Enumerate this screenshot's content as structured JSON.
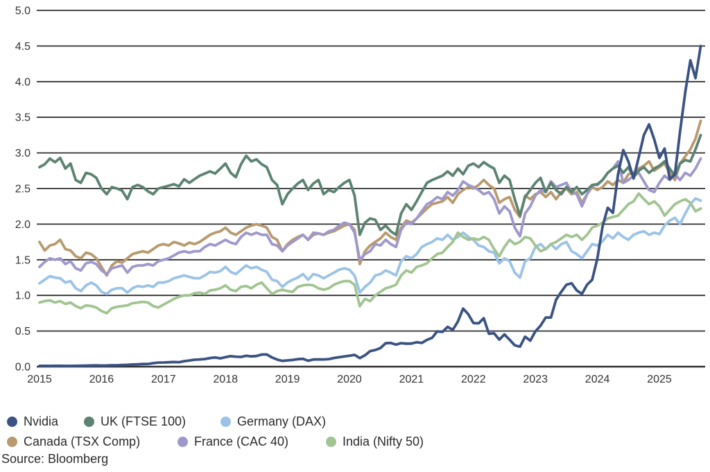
{
  "chart_data": {
    "type": "line",
    "title": "",
    "x_interval": "monthly",
    "x_range": [
      "2015-01",
      "2025-09"
    ],
    "x_tick_labels": [
      "2015",
      "2016",
      "2017",
      "2018",
      "2019",
      "2020",
      "2021",
      "2022",
      "2023",
      "2024",
      "2025"
    ],
    "ylim": [
      0.0,
      5.0
    ],
    "y_ticks": [
      0.0,
      0.5,
      1.0,
      1.5,
      2.0,
      2.5,
      3.0,
      3.5,
      4.0,
      4.5,
      5.0
    ],
    "grid": "horizontal-solid",
    "grid_color": "#2f2f2f",
    "axis_label_color": "#333333",
    "legend_position": "bottom-left-two-rows",
    "source": "Source: Bloomberg",
    "draw_order": [
      2,
      5,
      3,
      4,
      1,
      0
    ],
    "series": [
      {
        "name": "Nvidia",
        "color": "#3b5383",
        "values": [
          0.011,
          0.011,
          0.011,
          0.012,
          0.012,
          0.011,
          0.011,
          0.012,
          0.013,
          0.015,
          0.017,
          0.018,
          0.016,
          0.017,
          0.019,
          0.019,
          0.022,
          0.025,
          0.03,
          0.033,
          0.037,
          0.038,
          0.049,
          0.057,
          0.058,
          0.061,
          0.065,
          0.062,
          0.077,
          0.087,
          0.097,
          0.101,
          0.107,
          0.121,
          0.129,
          0.117,
          0.133,
          0.147,
          0.14,
          0.136,
          0.153,
          0.144,
          0.149,
          0.17,
          0.171,
          0.128,
          0.099,
          0.081,
          0.088,
          0.094,
          0.105,
          0.11,
          0.083,
          0.1,
          0.102,
          0.101,
          0.106,
          0.122,
          0.132,
          0.144,
          0.153,
          0.165,
          0.12,
          0.16,
          0.218,
          0.233,
          0.261,
          0.329,
          0.333,
          0.309,
          0.33,
          0.323,
          0.324,
          0.342,
          0.333,
          0.375,
          0.405,
          0.495,
          0.487,
          0.558,
          0.517,
          0.635,
          0.815,
          0.735,
          0.612,
          0.608,
          0.68,
          0.462,
          0.468,
          0.379,
          0.452,
          0.377,
          0.3,
          0.28,
          0.42,
          0.365,
          0.495,
          0.575,
          0.69,
          0.69,
          0.94,
          1.05,
          1.15,
          1.17,
          1.07,
          1.02,
          1.15,
          1.22,
          1.52,
          1.97,
          2.23,
          2.16,
          2.7,
          3.04,
          2.88,
          2.64,
          2.94,
          3.25,
          3.4,
          3.19,
          2.93,
          3.06,
          2.63,
          2.7,
          3.3,
          3.85,
          4.3,
          4.05,
          4.5
        ]
      },
      {
        "name": "UK (FTSE 100)",
        "color": "#5c8371",
        "values": [
          2.8,
          2.84,
          2.92,
          2.87,
          2.93,
          2.78,
          2.85,
          2.62,
          2.58,
          2.72,
          2.7,
          2.65,
          2.5,
          2.42,
          2.52,
          2.5,
          2.47,
          2.35,
          2.52,
          2.55,
          2.52,
          2.46,
          2.42,
          2.5,
          2.52,
          2.54,
          2.56,
          2.53,
          2.63,
          2.58,
          2.63,
          2.68,
          2.71,
          2.74,
          2.71,
          2.78,
          2.85,
          2.72,
          2.66,
          2.84,
          2.96,
          2.88,
          2.91,
          2.84,
          2.8,
          2.62,
          2.55,
          2.28,
          2.42,
          2.5,
          2.57,
          2.62,
          2.48,
          2.57,
          2.62,
          2.42,
          2.48,
          2.45,
          2.52,
          2.58,
          2.62,
          2.4,
          1.85,
          2.02,
          2.08,
          2.06,
          1.92,
          1.98,
          1.9,
          1.85,
          2.15,
          2.28,
          2.2,
          2.32,
          2.45,
          2.58,
          2.62,
          2.65,
          2.68,
          2.74,
          2.68,
          2.78,
          2.7,
          2.82,
          2.85,
          2.8,
          2.87,
          2.82,
          2.78,
          2.58,
          2.68,
          2.62,
          2.35,
          2.12,
          2.38,
          2.48,
          2.58,
          2.65,
          2.45,
          2.58,
          2.48,
          2.42,
          2.52,
          2.45,
          2.52,
          2.42,
          2.48,
          2.55,
          2.56,
          2.62,
          2.72,
          2.78,
          2.82,
          2.72,
          2.8,
          2.66,
          2.75,
          2.8,
          2.72,
          2.78,
          2.82,
          2.88,
          2.78,
          2.68,
          2.85,
          2.9,
          2.88,
          3.05,
          3.25
        ]
      },
      {
        "name": "Germany (DAX)",
        "color": "#9cc3e5",
        "values": [
          1.17,
          1.22,
          1.27,
          1.25,
          1.24,
          1.18,
          1.2,
          1.1,
          1.06,
          1.14,
          1.18,
          1.14,
          1.05,
          1.02,
          1.08,
          1.1,
          1.1,
          1.04,
          1.1,
          1.13,
          1.12,
          1.14,
          1.12,
          1.18,
          1.18,
          1.2,
          1.24,
          1.26,
          1.28,
          1.26,
          1.24,
          1.24,
          1.28,
          1.33,
          1.32,
          1.34,
          1.4,
          1.33,
          1.3,
          1.36,
          1.42,
          1.38,
          1.4,
          1.36,
          1.33,
          1.22,
          1.2,
          1.12,
          1.18,
          1.22,
          1.25,
          1.3,
          1.22,
          1.3,
          1.28,
          1.24,
          1.28,
          1.32,
          1.36,
          1.38,
          1.36,
          1.28,
          1.04,
          1.12,
          1.18,
          1.28,
          1.3,
          1.35,
          1.32,
          1.28,
          1.48,
          1.55,
          1.52,
          1.58,
          1.68,
          1.72,
          1.75,
          1.8,
          1.78,
          1.85,
          1.78,
          1.82,
          1.88,
          1.82,
          1.78,
          1.7,
          1.68,
          1.62,
          1.6,
          1.45,
          1.52,
          1.48,
          1.32,
          1.25,
          1.48,
          1.52,
          1.68,
          1.72,
          1.65,
          1.72,
          1.65,
          1.72,
          1.75,
          1.62,
          1.58,
          1.52,
          1.62,
          1.72,
          1.7,
          1.76,
          1.85,
          1.8,
          1.88,
          1.82,
          1.78,
          1.85,
          1.88,
          1.9,
          1.85,
          1.88,
          1.86,
          1.98,
          2.05,
          2.09,
          2.0,
          2.15,
          2.28,
          2.36,
          2.33
        ]
      },
      {
        "name": "Canada (TSX Comp)",
        "color": "#b89a6e",
        "values": [
          1.75,
          1.63,
          1.7,
          1.72,
          1.78,
          1.65,
          1.63,
          1.55,
          1.52,
          1.6,
          1.58,
          1.52,
          1.4,
          1.28,
          1.42,
          1.48,
          1.46,
          1.52,
          1.58,
          1.6,
          1.62,
          1.6,
          1.65,
          1.7,
          1.72,
          1.7,
          1.75,
          1.73,
          1.7,
          1.74,
          1.72,
          1.75,
          1.8,
          1.85,
          1.88,
          1.9,
          1.95,
          1.88,
          1.85,
          1.9,
          1.95,
          1.98,
          2.0,
          1.98,
          1.95,
          1.82,
          1.78,
          1.62,
          1.72,
          1.78,
          1.82,
          1.85,
          1.78,
          1.85,
          1.87,
          1.85,
          1.88,
          1.9,
          1.94,
          1.98,
          2.0,
          1.92,
          1.44,
          1.62,
          1.7,
          1.75,
          1.8,
          1.88,
          1.82,
          1.78,
          1.95,
          2.05,
          2.02,
          2.08,
          2.15,
          2.22,
          2.28,
          2.3,
          2.32,
          2.38,
          2.3,
          2.42,
          2.48,
          2.52,
          2.5,
          2.55,
          2.62,
          2.55,
          2.5,
          2.3,
          2.35,
          2.38,
          2.2,
          2.1,
          2.4,
          2.35,
          2.42,
          2.45,
          2.38,
          2.45,
          2.35,
          2.45,
          2.5,
          2.42,
          2.45,
          2.3,
          2.42,
          2.52,
          2.48,
          2.52,
          2.6,
          2.55,
          2.62,
          2.58,
          2.7,
          2.72,
          2.78,
          2.82,
          2.88,
          2.75,
          2.8,
          2.85,
          2.72,
          2.62,
          2.85,
          2.95,
          3.05,
          3.2,
          3.45
        ]
      },
      {
        "name": "France (CAC 40)",
        "color": "#9f98cd",
        "values": [
          1.4,
          1.47,
          1.52,
          1.5,
          1.52,
          1.44,
          1.48,
          1.38,
          1.35,
          1.45,
          1.47,
          1.44,
          1.35,
          1.3,
          1.38,
          1.4,
          1.42,
          1.32,
          1.4,
          1.42,
          1.42,
          1.44,
          1.42,
          1.48,
          1.5,
          1.52,
          1.56,
          1.6,
          1.62,
          1.6,
          1.62,
          1.62,
          1.68,
          1.72,
          1.7,
          1.74,
          1.78,
          1.74,
          1.72,
          1.82,
          1.88,
          1.85,
          1.88,
          1.85,
          1.85,
          1.72,
          1.7,
          1.62,
          1.7,
          1.75,
          1.8,
          1.85,
          1.78,
          1.88,
          1.87,
          1.85,
          1.9,
          1.92,
          1.98,
          2.02,
          2.0,
          1.88,
          1.5,
          1.58,
          1.62,
          1.72,
          1.7,
          1.78,
          1.72,
          1.68,
          1.92,
          2.02,
          2.0,
          2.08,
          2.18,
          2.28,
          2.32,
          2.38,
          2.35,
          2.45,
          2.4,
          2.48,
          2.6,
          2.55,
          2.52,
          2.48,
          2.42,
          2.45,
          2.35,
          2.15,
          2.25,
          2.18,
          1.95,
          1.83,
          2.15,
          2.25,
          2.4,
          2.48,
          2.45,
          2.6,
          2.52,
          2.55,
          2.58,
          2.45,
          2.42,
          2.25,
          2.42,
          2.55,
          2.55,
          2.62,
          2.72,
          2.78,
          2.88,
          2.58,
          2.62,
          2.68,
          2.72,
          2.6,
          2.48,
          2.45,
          2.58,
          2.68,
          2.62,
          2.7,
          2.62,
          2.72,
          2.68,
          2.78,
          2.92
        ]
      },
      {
        "name": "India (Nifty 50)",
        "color": "#a2c492",
        "values": [
          0.9,
          0.92,
          0.93,
          0.9,
          0.92,
          0.88,
          0.9,
          0.85,
          0.82,
          0.86,
          0.85,
          0.83,
          0.78,
          0.75,
          0.82,
          0.84,
          0.85,
          0.86,
          0.89,
          0.9,
          0.91,
          0.9,
          0.85,
          0.83,
          0.87,
          0.91,
          0.95,
          0.98,
          1.0,
          1.0,
          1.03,
          1.04,
          1.02,
          1.07,
          1.08,
          1.1,
          1.14,
          1.08,
          1.06,
          1.12,
          1.13,
          1.1,
          1.15,
          1.18,
          1.1,
          1.02,
          1.06,
          1.08,
          1.06,
          1.05,
          1.12,
          1.14,
          1.15,
          1.14,
          1.1,
          1.08,
          1.1,
          1.15,
          1.18,
          1.2,
          1.2,
          1.15,
          0.85,
          0.95,
          0.92,
          1.0,
          1.05,
          1.1,
          1.12,
          1.15,
          1.28,
          1.35,
          1.32,
          1.4,
          1.42,
          1.45,
          1.52,
          1.58,
          1.6,
          1.68,
          1.75,
          1.88,
          1.82,
          1.78,
          1.8,
          1.78,
          1.82,
          1.78,
          1.65,
          1.55,
          1.68,
          1.78,
          1.72,
          1.75,
          1.82,
          1.8,
          1.7,
          1.62,
          1.65,
          1.72,
          1.75,
          1.8,
          1.85,
          1.82,
          1.85,
          1.78,
          1.85,
          1.95,
          1.98,
          2.02,
          2.08,
          2.1,
          2.12,
          2.2,
          2.28,
          2.32,
          2.43,
          2.35,
          2.28,
          2.32,
          2.25,
          2.12,
          2.2,
          2.28,
          2.32,
          2.35,
          2.3,
          2.18,
          2.22
        ]
      }
    ]
  }
}
